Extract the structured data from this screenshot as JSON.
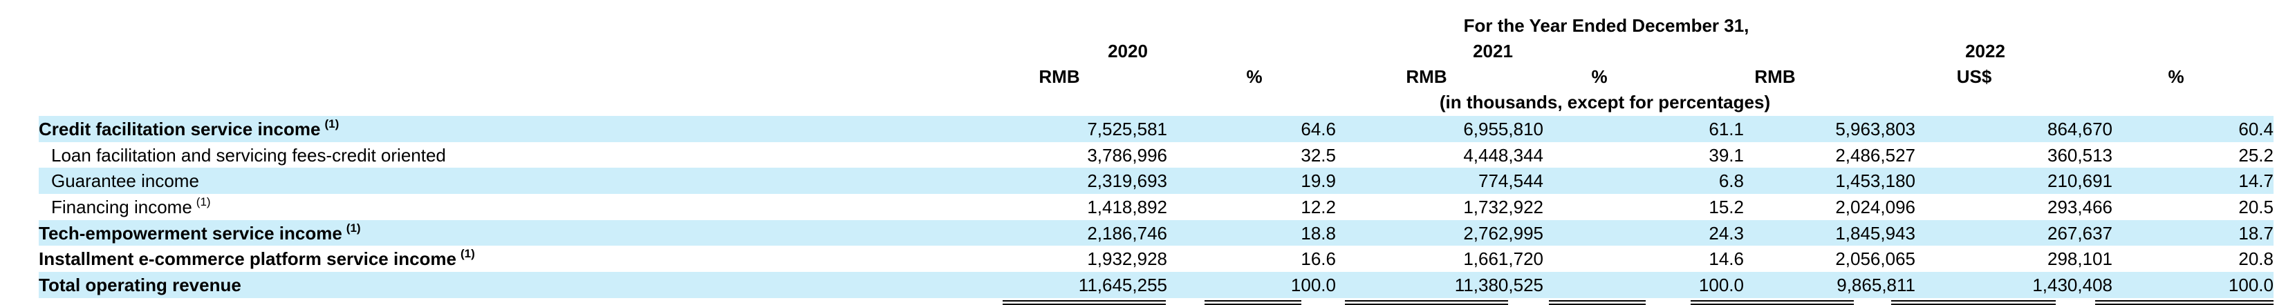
{
  "header": {
    "period_title": "For the Year Ended December 31,",
    "units_note": "(in thousands, except for percentages)",
    "years": [
      "2020",
      "2021",
      "2022"
    ],
    "currency_labels": [
      "RMB",
      "%",
      "RMB",
      "%",
      "RMB",
      "US$",
      "%"
    ]
  },
  "rows": [
    {
      "label": "Credit facilitation service income",
      "note": "(1)",
      "style": "bold",
      "values": [
        "7,525,581",
        "64.6",
        "6,955,810",
        "61.1",
        "5,963,803",
        "864,670",
        "60.4"
      ]
    },
    {
      "label": "Loan facilitation and servicing fees-credit oriented",
      "note": "",
      "style": "indent",
      "values": [
        "3,786,996",
        "32.5",
        "4,448,344",
        "39.1",
        "2,486,527",
        "360,513",
        "25.2"
      ]
    },
    {
      "label": "Guarantee income",
      "note": "",
      "style": "indent",
      "values": [
        "2,319,693",
        "19.9",
        "774,544",
        "6.8",
        "1,453,180",
        "210,691",
        "14.7"
      ]
    },
    {
      "label": "Financing income",
      "note": "(1)",
      "style": "indent",
      "values": [
        "1,418,892",
        "12.2",
        "1,732,922",
        "15.2",
        "2,024,096",
        "293,466",
        "20.5"
      ]
    },
    {
      "label": "Tech-empowerment service income",
      "note": "(1)",
      "style": "bold",
      "values": [
        "2,186,746",
        "18.8",
        "2,762,995",
        "24.3",
        "1,845,943",
        "267,637",
        "18.7"
      ]
    },
    {
      "label": "Installment e-commerce platform service income",
      "note": "(1)",
      "style": "bold",
      "values": [
        "1,932,928",
        "16.6",
        "1,661,720",
        "14.6",
        "2,056,065",
        "298,101",
        "20.8"
      ]
    },
    {
      "label": "Total operating revenue",
      "note": "",
      "style": "bold",
      "values": [
        "11,645,255",
        "100.0",
        "11,380,525",
        "100.0",
        "9,865,811",
        "1,430,408",
        "100.0"
      ]
    }
  ]
}
